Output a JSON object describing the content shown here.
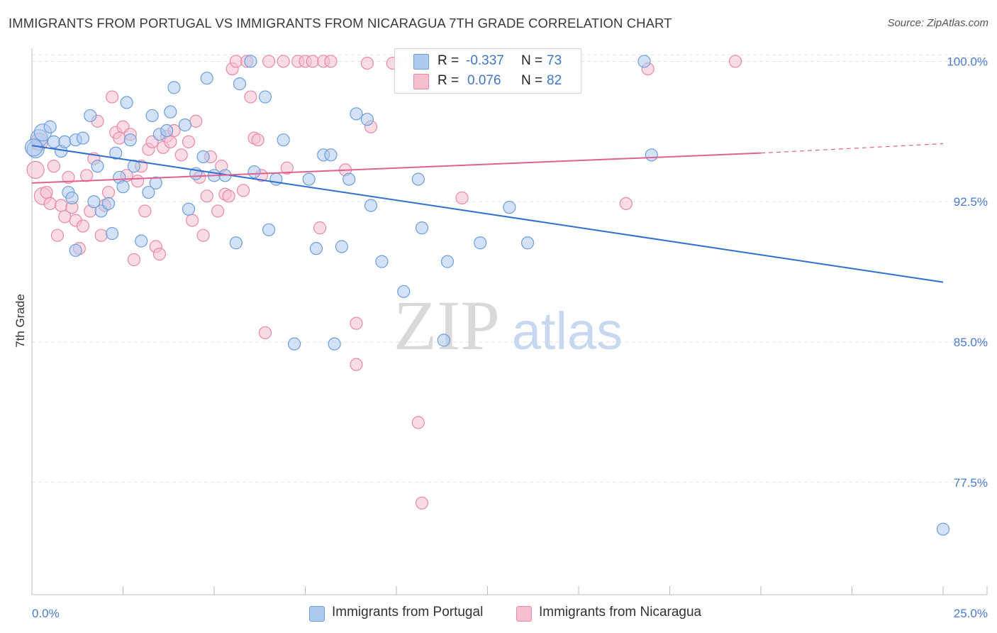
{
  "title": "IMMIGRANTS FROM PORTUGAL VS IMMIGRANTS FROM NICARAGUA 7TH GRADE CORRELATION CHART",
  "source": "Source: ZipAtlas.com",
  "watermark": {
    "zip": "ZIP",
    "atlas": "atlas"
  },
  "colors": {
    "portugal_fill": "#aecbee",
    "portugal_stroke": "#6d9edc",
    "portugal_line": "#2f6fd0",
    "nicaragua_fill": "#f6bfd0",
    "nicaragua_stroke": "#e889a8",
    "nicaragua_line": "#e0628e",
    "tick_text": "#4a7bd0",
    "grid": "#e3e3e3"
  },
  "legend_top": {
    "rows": [
      {
        "r_label": "R =",
        "r_value": "-0.337",
        "n_label": "N =",
        "n_value": "73"
      },
      {
        "r_label": "R =",
        "r_value": "0.076",
        "n_label": "N =",
        "n_value": "82"
      }
    ]
  },
  "legend_bottom": {
    "items": [
      {
        "label": "Immigrants from Portugal"
      },
      {
        "label": "Immigrants from Nicaragua"
      }
    ]
  },
  "chart_data": {
    "type": "scatter",
    "title": "IMMIGRANTS FROM PORTUGAL VS IMMIGRANTS FROM NICARAGUA 7TH GRADE CORRELATION CHART",
    "xlabel": "",
    "ylabel": "7th Grade",
    "xlim": [
      0,
      25
    ],
    "ylim": [
      71.5,
      100.7
    ],
    "x_tick_labels": [
      "0.0%",
      "25.0%"
    ],
    "y_ticks": [
      100.0,
      92.5,
      85.0,
      77.5
    ],
    "y_tick_labels": [
      "100.0%",
      "92.5%",
      "85.0%",
      "77.5%"
    ],
    "grid": true,
    "legend_position": "top-center",
    "series": [
      {
        "name": "Immigrants from Portugal",
        "r": -0.337,
        "n": 73,
        "trend": {
          "x0": 0.0,
          "y0": 95.5,
          "x1": 25.0,
          "y1": 88.2
        },
        "points": [
          [
            0.1,
            95.3
          ],
          [
            0.2,
            95.9
          ],
          [
            0.3,
            96.2
          ],
          [
            0.5,
            96.5
          ],
          [
            0.6,
            95.7
          ],
          [
            0.8,
            95.2
          ],
          [
            0.9,
            95.7
          ],
          [
            1.0,
            93.0
          ],
          [
            1.1,
            92.7
          ],
          [
            1.2,
            89.9
          ],
          [
            1.2,
            95.8
          ],
          [
            1.4,
            95.9
          ],
          [
            1.6,
            97.1
          ],
          [
            1.7,
            92.5
          ],
          [
            1.8,
            94.4
          ],
          [
            1.9,
            92.0
          ],
          [
            2.1,
            92.4
          ],
          [
            2.2,
            90.8
          ],
          [
            2.3,
            95.1
          ],
          [
            2.4,
            93.8
          ],
          [
            2.5,
            93.3
          ],
          [
            2.6,
            97.8
          ],
          [
            2.7,
            95.8
          ],
          [
            2.8,
            94.4
          ],
          [
            3.0,
            90.4
          ],
          [
            3.2,
            93.0
          ],
          [
            3.3,
            97.1
          ],
          [
            3.4,
            93.5
          ],
          [
            3.5,
            96.1
          ],
          [
            3.7,
            96.3
          ],
          [
            3.8,
            97.3
          ],
          [
            3.9,
            98.6
          ],
          [
            4.2,
            96.6
          ],
          [
            4.3,
            92.1
          ],
          [
            4.5,
            94.0
          ],
          [
            4.7,
            94.9
          ],
          [
            4.8,
            99.1
          ],
          [
            5.0,
            93.9
          ],
          [
            5.3,
            93.9
          ],
          [
            5.6,
            90.3
          ],
          [
            5.7,
            98.8
          ],
          [
            6.0,
            100.0
          ],
          [
            6.1,
            94.1
          ],
          [
            6.4,
            98.1
          ],
          [
            6.5,
            91.0
          ],
          [
            6.7,
            93.7
          ],
          [
            6.9,
            95.8
          ],
          [
            7.2,
            84.9
          ],
          [
            7.6,
            93.7
          ],
          [
            7.8,
            90.0
          ],
          [
            8.0,
            95.0
          ],
          [
            8.2,
            95.0
          ],
          [
            8.3,
            84.9
          ],
          [
            8.5,
            90.1
          ],
          [
            8.7,
            93.7
          ],
          [
            8.9,
            97.2
          ],
          [
            9.2,
            96.9
          ],
          [
            9.3,
            92.3
          ],
          [
            9.6,
            89.3
          ],
          [
            10.2,
            87.7
          ],
          [
            10.6,
            93.7
          ],
          [
            10.7,
            91.1
          ],
          [
            11.3,
            85.1
          ],
          [
            11.4,
            89.3
          ],
          [
            12.3,
            90.3
          ],
          [
            13.1,
            92.2
          ],
          [
            13.6,
            90.3
          ],
          [
            14.0,
            100.0
          ],
          [
            14.1,
            100.0
          ],
          [
            16.8,
            100.0
          ],
          [
            17.0,
            95.0
          ],
          [
            25.0,
            75.0
          ],
          [
            0.05,
            95.4
          ]
        ]
      },
      {
        "name": "Immigrants from Nicaragua",
        "r": 0.076,
        "n": 82,
        "trend": {
          "x0": 0.0,
          "y0": 93.5,
          "x1": 20.0,
          "y1": 95.1,
          "dash_x1": 25.0,
          "dash_y1": 95.6
        },
        "points": [
          [
            0.1,
            94.2
          ],
          [
            0.2,
            95.7
          ],
          [
            0.3,
            92.8
          ],
          [
            0.4,
            93.0
          ],
          [
            0.5,
            92.4
          ],
          [
            0.6,
            94.4
          ],
          [
            0.7,
            90.7
          ],
          [
            0.8,
            92.3
          ],
          [
            0.9,
            91.7
          ],
          [
            1.0,
            93.8
          ],
          [
            1.1,
            92.2
          ],
          [
            1.2,
            91.5
          ],
          [
            1.3,
            90.0
          ],
          [
            1.4,
            91.2
          ],
          [
            1.5,
            93.9
          ],
          [
            1.6,
            92.0
          ],
          [
            1.7,
            94.8
          ],
          [
            1.8,
            96.8
          ],
          [
            1.9,
            90.7
          ],
          [
            2.0,
            92.3
          ],
          [
            2.1,
            93.0
          ],
          [
            2.2,
            98.1
          ],
          [
            2.3,
            96.2
          ],
          [
            2.4,
            95.9
          ],
          [
            2.5,
            96.5
          ],
          [
            2.6,
            93.9
          ],
          [
            2.7,
            96.1
          ],
          [
            2.8,
            89.4
          ],
          [
            2.9,
            93.6
          ],
          [
            3.0,
            94.4
          ],
          [
            3.1,
            92.0
          ],
          [
            3.2,
            95.3
          ],
          [
            3.3,
            95.7
          ],
          [
            3.4,
            90.1
          ],
          [
            3.5,
            89.7
          ],
          [
            3.6,
            95.4
          ],
          [
            3.7,
            96.0
          ],
          [
            3.8,
            95.7
          ],
          [
            3.9,
            96.3
          ],
          [
            4.1,
            95.0
          ],
          [
            4.3,
            95.7
          ],
          [
            4.4,
            91.5
          ],
          [
            4.5,
            96.8
          ],
          [
            4.6,
            93.8
          ],
          [
            4.7,
            90.7
          ],
          [
            4.8,
            92.8
          ],
          [
            4.9,
            94.9
          ],
          [
            5.1,
            92.0
          ],
          [
            5.2,
            94.4
          ],
          [
            5.3,
            92.9
          ],
          [
            5.4,
            92.8
          ],
          [
            5.5,
            99.6
          ],
          [
            5.6,
            100.0
          ],
          [
            5.8,
            93.1
          ],
          [
            5.9,
            100.0
          ],
          [
            6.0,
            98.1
          ],
          [
            6.1,
            95.9
          ],
          [
            6.2,
            95.8
          ],
          [
            6.3,
            93.9
          ],
          [
            6.4,
            85.5
          ],
          [
            6.5,
            100.0
          ],
          [
            6.9,
            100.0
          ],
          [
            7.0,
            94.3
          ],
          [
            7.3,
            100.0
          ],
          [
            7.5,
            100.0
          ],
          [
            7.7,
            100.0
          ],
          [
            7.9,
            91.1
          ],
          [
            8.0,
            100.0
          ],
          [
            8.2,
            100.0
          ],
          [
            8.6,
            94.2
          ],
          [
            8.9,
            86.0
          ],
          [
            8.9,
            83.8
          ],
          [
            9.2,
            99.9
          ],
          [
            9.3,
            96.5
          ],
          [
            9.9,
            99.9
          ],
          [
            10.4,
            100.0
          ],
          [
            10.6,
            80.7
          ],
          [
            10.7,
            76.4
          ],
          [
            11.8,
            92.7
          ],
          [
            16.3,
            92.4
          ],
          [
            16.9,
            99.6
          ],
          [
            19.3,
            100.0
          ]
        ]
      }
    ]
  }
}
